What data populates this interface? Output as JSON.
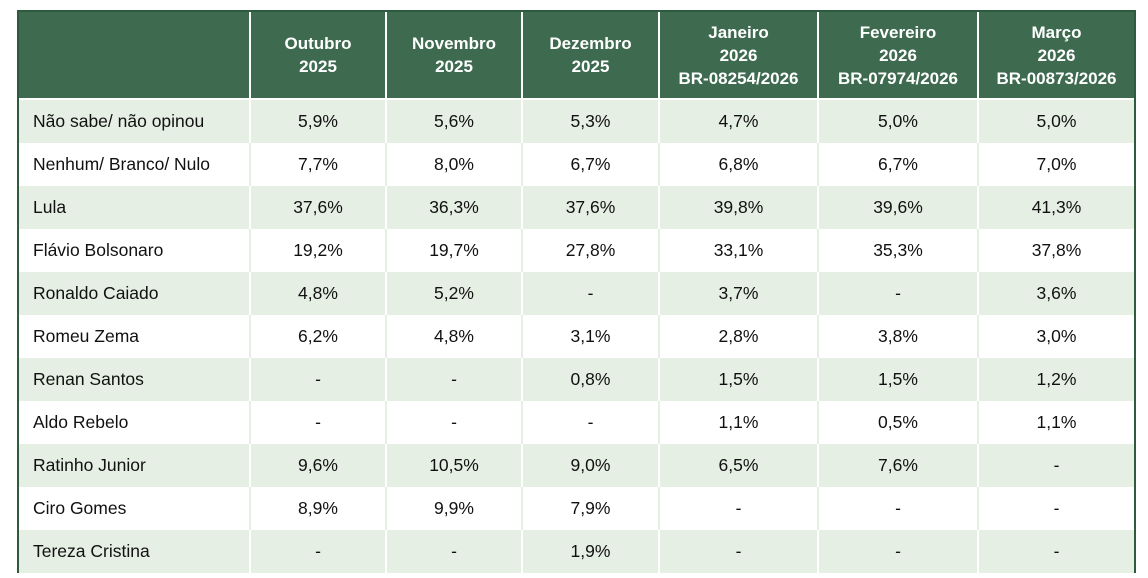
{
  "table": {
    "header": [
      [],
      [
        "Outubro",
        "2025"
      ],
      [
        "Novembro",
        "2025"
      ],
      [
        "Dezembro",
        "2025"
      ],
      [
        "Janeiro",
        "2026",
        "BR-08254/2026"
      ],
      [
        "Fevereiro",
        "2026",
        "BR-07974/2026"
      ],
      [
        "Março",
        "2026",
        "BR-00873/2026"
      ]
    ],
    "rows": [
      [
        "Não sabe/ não opinou",
        "5,9%",
        "5,6%",
        "5,3%",
        "4,7%",
        "5,0%",
        "5,0%"
      ],
      [
        "Nenhum/ Branco/ Nulo",
        "7,7%",
        "8,0%",
        "6,7%",
        "6,8%",
        "6,7%",
        "7,0%"
      ],
      [
        "Lula",
        "37,6%",
        "36,3%",
        "37,6%",
        "39,8%",
        "39,6%",
        "41,3%"
      ],
      [
        "Flávio Bolsonaro",
        "19,2%",
        "19,7%",
        "27,8%",
        "33,1%",
        "35,3%",
        "37,8%"
      ],
      [
        "Ronaldo Caiado",
        "4,8%",
        "5,2%",
        "-",
        "3,7%",
        "-",
        "3,6%"
      ],
      [
        "Romeu Zema",
        "6,2%",
        "4,8%",
        "3,1%",
        "2,8%",
        "3,8%",
        "3,0%"
      ],
      [
        "Renan Santos",
        "-",
        "-",
        "0,8%",
        "1,5%",
        "1,5%",
        "1,2%"
      ],
      [
        "Aldo Rebelo",
        "-",
        "-",
        "-",
        "1,1%",
        "0,5%",
        "1,1%"
      ],
      [
        "Ratinho Junior",
        "9,6%",
        "10,5%",
        "9,0%",
        "6,5%",
        "7,6%",
        "-"
      ],
      [
        "Ciro Gomes",
        "8,9%",
        "9,9%",
        "7,9%",
        "-",
        "-",
        "-"
      ],
      [
        "Tereza Cristina",
        "-",
        "-",
        "1,9%",
        "-",
        "-",
        "-"
      ]
    ]
  }
}
